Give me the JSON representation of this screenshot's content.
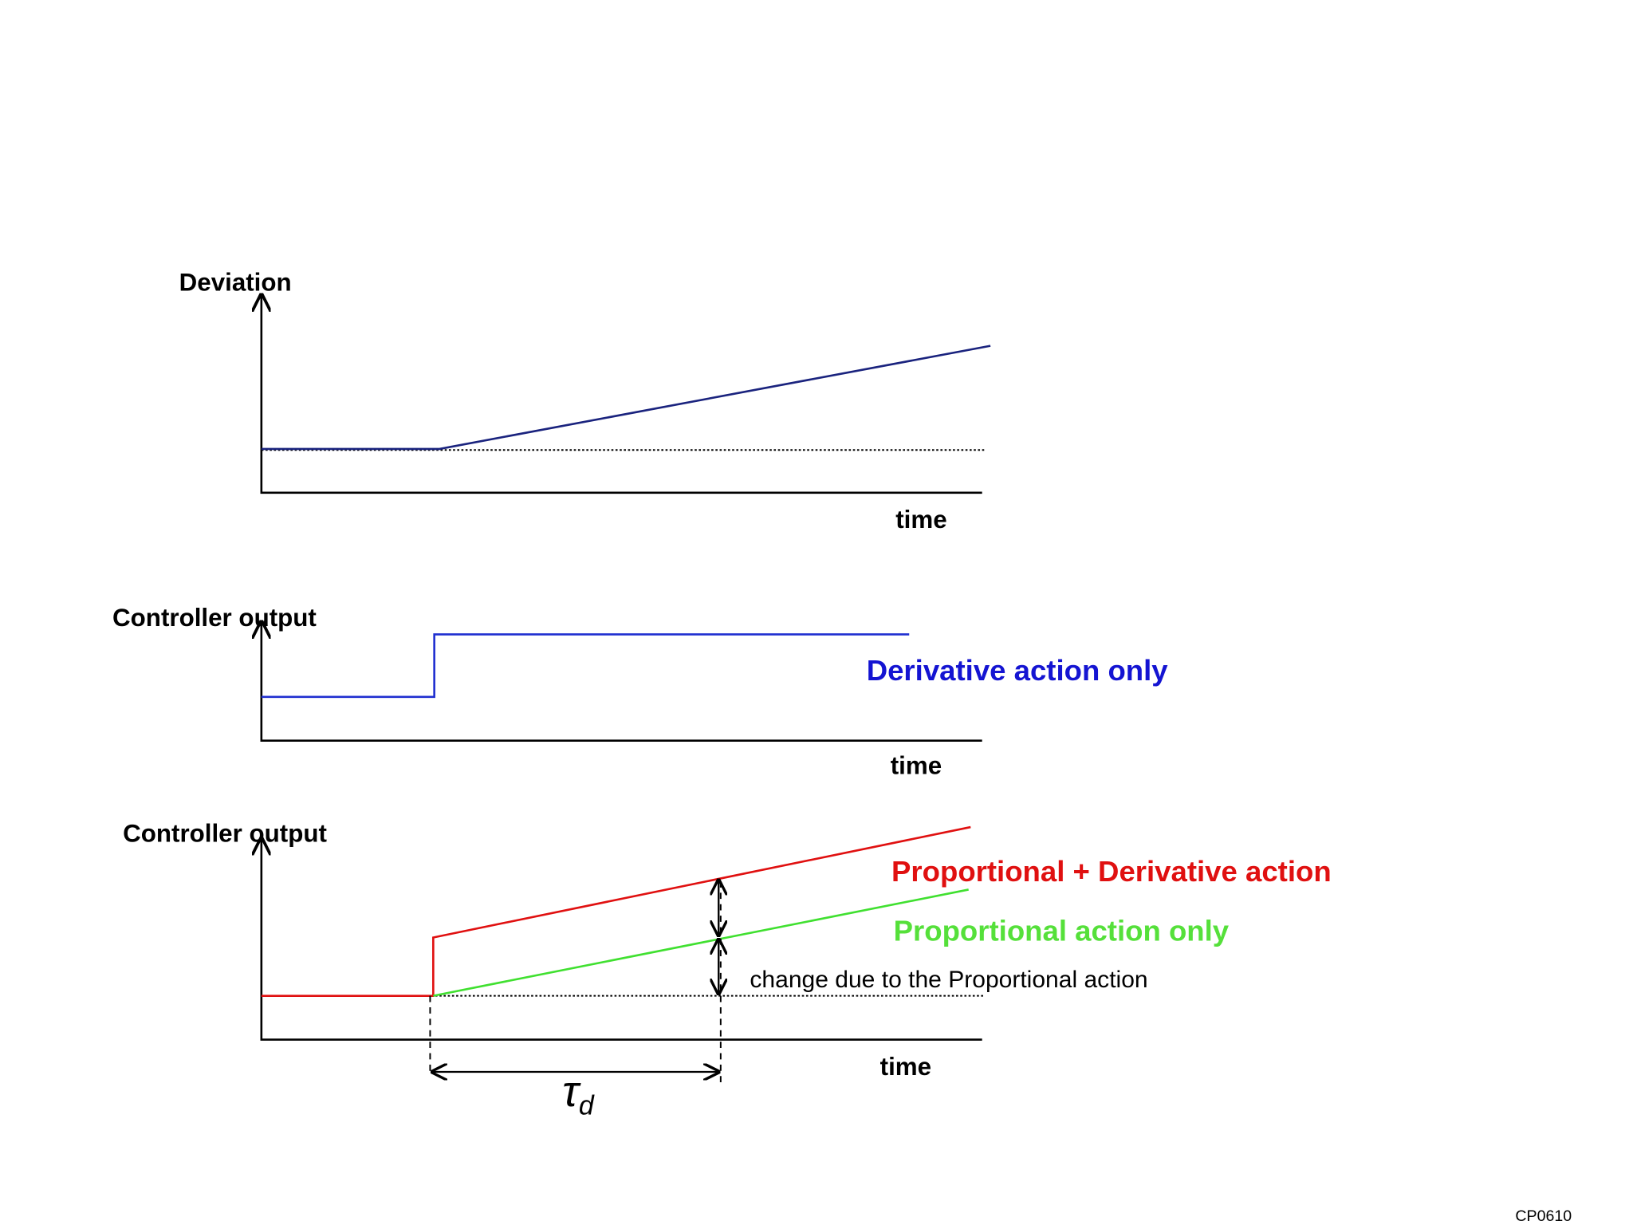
{
  "panels": [
    {
      "y_label": "Deviation",
      "x_label": "time"
    },
    {
      "y_label": "Controller output",
      "x_label": "time",
      "annotation": "Derivative action only"
    },
    {
      "y_label": "Controller output",
      "x_label": "time",
      "annotations": [
        "Proportional + Derivative action",
        "Proportional action only",
        "change due to the Proportional action"
      ]
    }
  ],
  "tau_label": {
    "symbol": "τ",
    "subscript": "d"
  },
  "footer": "CP0610"
}
